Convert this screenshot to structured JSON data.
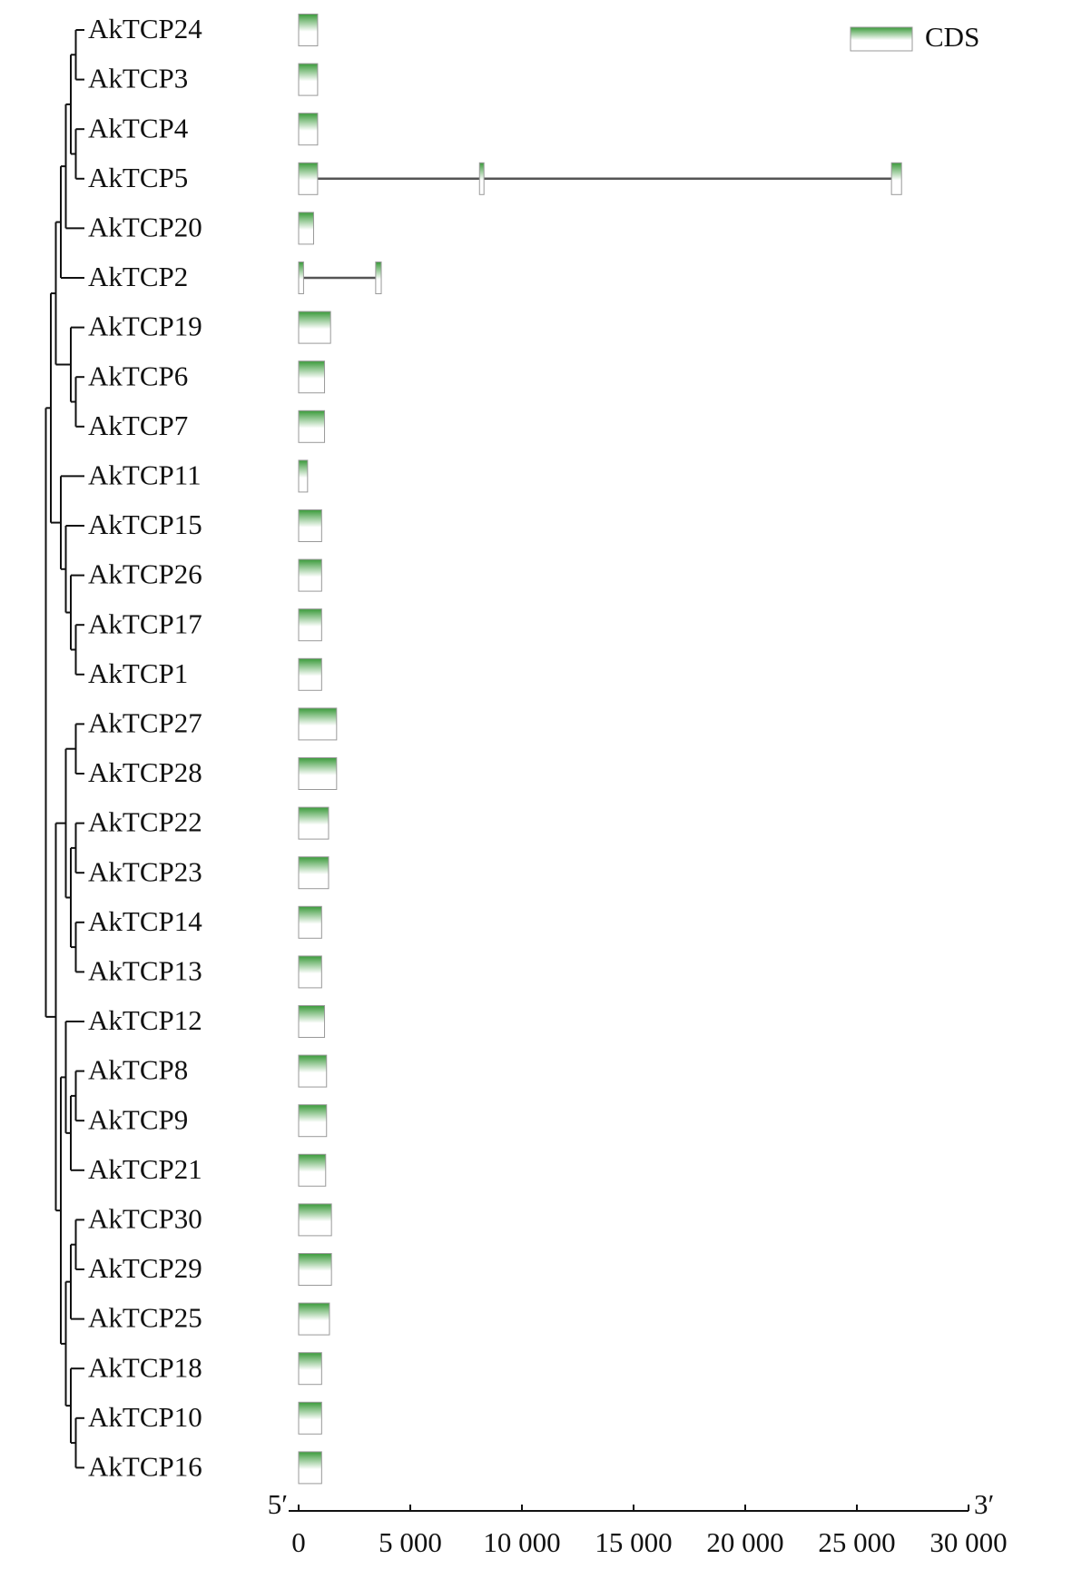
{
  "chart_data": {
    "type": "gene-structure",
    "genes": [
      {
        "name": "AkTCP24",
        "exons": [
          [
            0,
            850
          ]
        ]
      },
      {
        "name": "AkTCP3",
        "exons": [
          [
            0,
            850
          ]
        ]
      },
      {
        "name": "AkTCP4",
        "exons": [
          [
            0,
            850
          ]
        ]
      },
      {
        "name": "AkTCP5",
        "exons": [
          [
            0,
            850
          ],
          [
            8100,
            8300
          ],
          [
            26550,
            27000
          ]
        ]
      },
      {
        "name": "AkTCP20",
        "exons": [
          [
            0,
            670
          ]
        ]
      },
      {
        "name": "AkTCP2",
        "exons": [
          [
            0,
            220
          ],
          [
            3450,
            3700
          ]
        ]
      },
      {
        "name": "AkTCP19",
        "exons": [
          [
            0,
            1430
          ]
        ]
      },
      {
        "name": "AkTCP6",
        "exons": [
          [
            0,
            1160
          ]
        ]
      },
      {
        "name": "AkTCP7",
        "exons": [
          [
            0,
            1160
          ]
        ]
      },
      {
        "name": "AkTCP11",
        "exons": [
          [
            0,
            400
          ]
        ]
      },
      {
        "name": "AkTCP15",
        "exons": [
          [
            0,
            1030
          ]
        ]
      },
      {
        "name": "AkTCP26",
        "exons": [
          [
            0,
            1030
          ]
        ]
      },
      {
        "name": "AkTCP17",
        "exons": [
          [
            0,
            1030
          ]
        ]
      },
      {
        "name": "AkTCP1",
        "exons": [
          [
            0,
            1030
          ]
        ]
      },
      {
        "name": "AkTCP27",
        "exons": [
          [
            0,
            1700
          ]
        ]
      },
      {
        "name": "AkTCP28",
        "exons": [
          [
            0,
            1700
          ]
        ]
      },
      {
        "name": "AkTCP22",
        "exons": [
          [
            0,
            1340
          ]
        ]
      },
      {
        "name": "AkTCP23",
        "exons": [
          [
            0,
            1340
          ]
        ]
      },
      {
        "name": "AkTCP14",
        "exons": [
          [
            0,
            1030
          ]
        ]
      },
      {
        "name": "AkTCP13",
        "exons": [
          [
            0,
            1030
          ]
        ]
      },
      {
        "name": "AkTCP12",
        "exons": [
          [
            0,
            1160
          ]
        ]
      },
      {
        "name": "AkTCP8",
        "exons": [
          [
            0,
            1250
          ]
        ]
      },
      {
        "name": "AkTCP9",
        "exons": [
          [
            0,
            1250
          ]
        ]
      },
      {
        "name": "AkTCP21",
        "exons": [
          [
            0,
            1210
          ]
        ]
      },
      {
        "name": "AkTCP30",
        "exons": [
          [
            0,
            1470
          ]
        ]
      },
      {
        "name": "AkTCP29",
        "exons": [
          [
            0,
            1470
          ]
        ]
      },
      {
        "name": "AkTCP25",
        "exons": [
          [
            0,
            1380
          ]
        ]
      },
      {
        "name": "AkTCP18",
        "exons": [
          [
            0,
            1030
          ]
        ]
      },
      {
        "name": "AkTCP10",
        "exons": [
          [
            0,
            1030
          ]
        ]
      },
      {
        "name": "AkTCP16",
        "exons": [
          [
            0,
            1030
          ]
        ]
      }
    ],
    "xlim": [
      0,
      30000
    ],
    "xticks": [
      0,
      {
        "value": 5000,
        "label": "5 000"
      },
      {
        "value": 10000,
        "label": "10 000"
      },
      {
        "value": 15000,
        "label": "15 000"
      },
      {
        "value": 20000,
        "label": "20 000"
      },
      {
        "value": 25000,
        "label": "25 000"
      },
      {
        "value": 30000,
        "label": "30 000"
      }
    ],
    "axis_ends": {
      "left": "5′",
      "right": "3′"
    },
    "legend": "CDS",
    "color": "#3a9a3a"
  }
}
